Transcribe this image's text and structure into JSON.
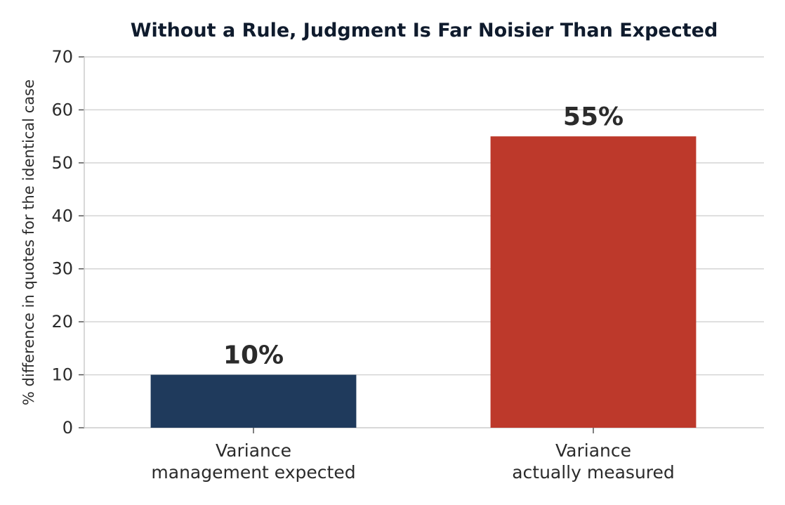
{
  "chart_data": {
    "type": "bar",
    "title": "Without a Rule, Judgment Is Far Noisier Than Expected",
    "xlabel": "",
    "ylabel": "% difference in quotes for the identical case",
    "ylim": [
      0,
      70
    ],
    "yticks": [
      0,
      10,
      20,
      30,
      40,
      50,
      60,
      70
    ],
    "grid": true,
    "categories": [
      [
        "Variance",
        "management expected"
      ],
      [
        "Variance",
        "actually measured"
      ]
    ],
    "values": [
      10,
      55
    ],
    "data_labels": [
      "10%",
      "55%"
    ],
    "colors": [
      "#1f3a5c",
      "#bd392b"
    ]
  }
}
